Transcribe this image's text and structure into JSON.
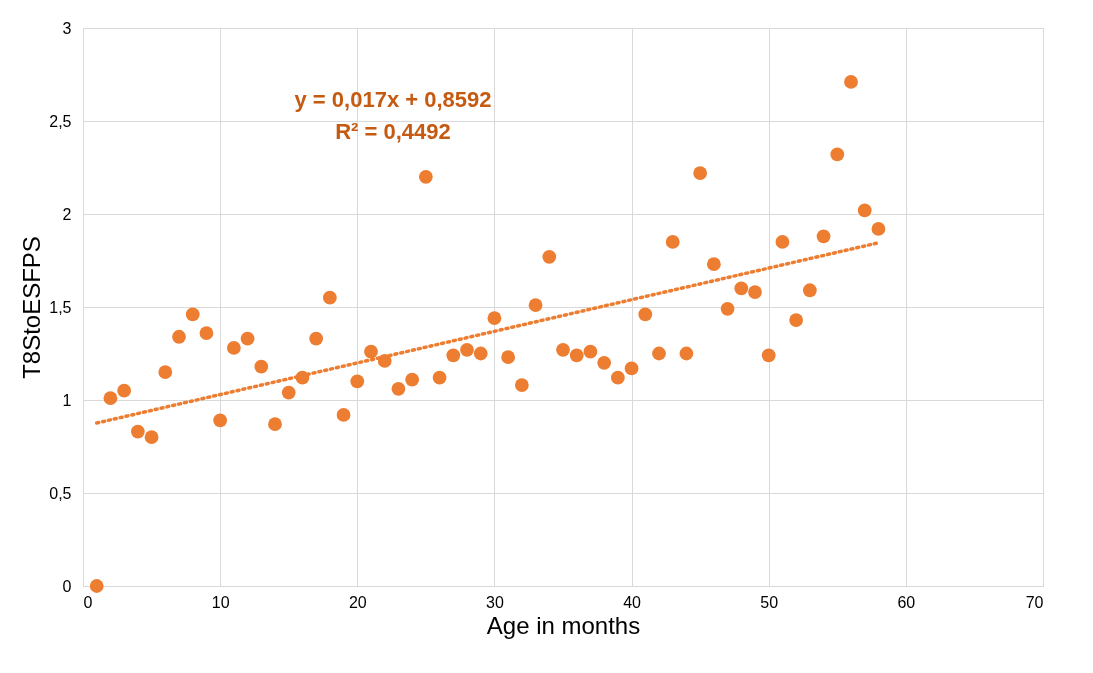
{
  "chart_data": {
    "type": "scatter",
    "xlabel": "Age in months",
    "ylabel": "T8StoESFPS",
    "x": [
      1,
      2,
      3,
      4,
      5,
      6,
      7,
      8,
      9,
      10,
      11,
      12,
      13,
      14,
      15,
      16,
      17,
      18,
      19,
      20,
      21,
      22,
      23,
      24,
      25,
      26,
      27,
      28,
      29,
      30,
      31,
      32,
      33,
      34,
      35,
      36,
      37,
      38,
      39,
      40,
      41,
      42,
      43,
      44,
      45,
      46,
      47,
      48,
      49,
      50,
      51,
      52,
      53,
      54,
      55,
      56,
      57,
      58
    ],
    "series": [
      {
        "color": "#ed7d31",
        "marker": "circle",
        "values": [
          0,
          1.01,
          1.05,
          0.83,
          0.8,
          1.15,
          1.34,
          1.46,
          1.36,
          0.89,
          1.28,
          1.33,
          1.18,
          0.87,
          1.04,
          1.12,
          1.33,
          1.55,
          0.92,
          1.1,
          1.26,
          1.21,
          1.06,
          1.11,
          2.2,
          1.12,
          1.24,
          1.27,
          1.25,
          1.44,
          1.23,
          1.08,
          1.51,
          1.77,
          1.27,
          1.24,
          1.26,
          1.2,
          1.12,
          1.17,
          1.46,
          1.25,
          1.85,
          1.25,
          2.22,
          1.73,
          1.49,
          1.6,
          1.58,
          1.24,
          1.85,
          1.43,
          1.59,
          1.88,
          2.32,
          2.71,
          2.02,
          1.92
        ]
      },
      {
        "type": "line",
        "color": "#ed7d31",
        "line_style": "dotted",
        "x": [
          1,
          58
        ],
        "values": [
          0.8762,
          1.8452
        ]
      }
    ],
    "annotations": [
      "y = 0,017x + 0,8592",
      "R² = 0,4492"
    ],
    "xlim": [
      0,
      70
    ],
    "xticks": [
      0,
      10,
      20,
      30,
      40,
      50,
      60,
      70
    ],
    "ylim": [
      0,
      3
    ],
    "yticks": [
      0,
      {
        "value": 0.5,
        "label": "0,5"
      },
      1,
      {
        "value": 1.5,
        "label": "1,5"
      },
      2,
      {
        "value": 2.5,
        "label": "2,5"
      },
      3
    ],
    "grid": true
  }
}
